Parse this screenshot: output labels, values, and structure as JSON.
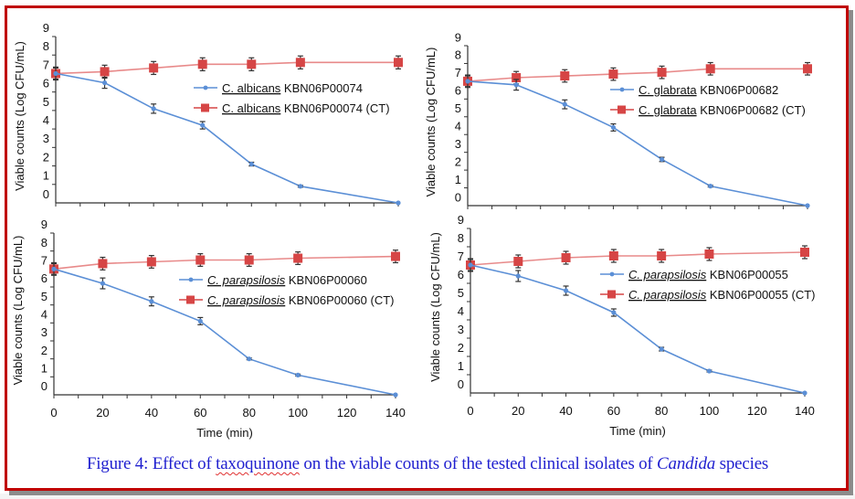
{
  "caption": {
    "prefix": "Figure 4: Effect of ",
    "compound": "taxoquinone",
    "middle": " on the viable counts of the tested clinical isolates of ",
    "genus": "Candida",
    "suffix": " species"
  },
  "colors": {
    "frame": "#c00000",
    "caption": "#1f1fcf",
    "treated_series": "#5b8fd6",
    "control_series": "#d64545",
    "control_line": "#e88a8a",
    "error_bar": "#333333"
  },
  "chart_data": [
    {
      "type": "line",
      "panel": "top-left",
      "title": "",
      "xlabel": "",
      "ylabel": "Viable counts (Log CFU/mL)",
      "x": [
        0,
        20,
        40,
        60,
        80,
        100,
        140
      ],
      "xlim": [
        0,
        140
      ],
      "ylim": [
        0,
        9
      ],
      "yticks": [
        0,
        1,
        2,
        3,
        4,
        5,
        6,
        7,
        8,
        9
      ],
      "xticks": [],
      "grid": false,
      "legend_position": "center-right",
      "series": [
        {
          "name": "C. albicans KBN06P00074",
          "name_species": "C. albicans",
          "name_strain": "KBN06P00074",
          "italic": false,
          "marker": "dot",
          "values": [
            7.0,
            6.5,
            5.1,
            4.2,
            2.1,
            0.9,
            0.0
          ],
          "errors": [
            0.3,
            0.3,
            0.25,
            0.2,
            0.1,
            0.05,
            0.0
          ]
        },
        {
          "name": "C. albicans KBN06P00074 (CT)",
          "name_species": "C. albicans",
          "name_strain": "KBN06P00074 (CT)",
          "italic": false,
          "marker": "square",
          "values": [
            7.0,
            7.1,
            7.3,
            7.5,
            7.5,
            7.6,
            7.6
          ],
          "errors": [
            0.35,
            0.35,
            0.35,
            0.35,
            0.35,
            0.35,
            0.35
          ]
        }
      ]
    },
    {
      "type": "line",
      "panel": "top-right",
      "title": "",
      "xlabel": "",
      "ylabel": "Viable counts (Log CFU/mL)",
      "x": [
        0,
        20,
        40,
        60,
        80,
        100,
        140
      ],
      "xlim": [
        0,
        140
      ],
      "ylim": [
        0,
        9
      ],
      "yticks": [
        0,
        1,
        2,
        3,
        4,
        5,
        6,
        7,
        8,
        9
      ],
      "xticks": [],
      "grid": false,
      "legend_position": "center-right",
      "series": [
        {
          "name": "C. glabrata KBN06P00682",
          "name_species": "C. glabrata",
          "name_strain": "KBN06P00682",
          "italic": false,
          "marker": "dot",
          "values": [
            7.0,
            6.8,
            5.7,
            4.4,
            2.6,
            1.1,
            0.0
          ],
          "errors": [
            0.3,
            0.3,
            0.25,
            0.2,
            0.12,
            0.05,
            0.0
          ]
        },
        {
          "name": "C. glabrata KBN06P00682 (CT)",
          "name_species": "C. glabrata",
          "name_strain": "KBN06P00682 (CT)",
          "italic": false,
          "marker": "square",
          "values": [
            7.0,
            7.2,
            7.3,
            7.4,
            7.5,
            7.7,
            7.7
          ],
          "errors": [
            0.35,
            0.35,
            0.35,
            0.35,
            0.35,
            0.35,
            0.35
          ]
        }
      ]
    },
    {
      "type": "line",
      "panel": "bottom-left",
      "title": "",
      "xlabel": "Time (min)",
      "ylabel": "Viable counts (Log CFU/mL)",
      "x": [
        0,
        20,
        40,
        60,
        80,
        100,
        140
      ],
      "xlim": [
        0,
        140
      ],
      "ylim": [
        0,
        9
      ],
      "yticks": [
        0,
        1,
        2,
        3,
        4,
        5,
        6,
        7,
        8,
        9
      ],
      "xticks": [
        0,
        20,
        40,
        60,
        80,
        100,
        120,
        140
      ],
      "grid": false,
      "legend_position": "center-right",
      "series": [
        {
          "name": "C. parapsilosis KBN06P00060",
          "name_species": "C. parapsilosis",
          "name_strain": "KBN06P00060",
          "italic": true,
          "marker": "dot",
          "values": [
            7.0,
            6.2,
            5.2,
            4.1,
            2.0,
            1.1,
            0.0
          ],
          "errors": [
            0.3,
            0.3,
            0.25,
            0.2,
            0.05,
            0.05,
            0.0
          ]
        },
        {
          "name": "C. parapsilosis KBN06P00060 (CT)",
          "name_species": "C. parapsilosis",
          "name_strain": "KBN06P00060 (CT)",
          "italic": true,
          "marker": "square",
          "values": [
            7.0,
            7.3,
            7.4,
            7.5,
            7.5,
            7.6,
            7.7
          ],
          "errors": [
            0.35,
            0.35,
            0.35,
            0.35,
            0.35,
            0.35,
            0.35
          ]
        }
      ]
    },
    {
      "type": "line",
      "panel": "bottom-right",
      "title": "",
      "xlabel": "Time (min)",
      "ylabel": "Viable counts (Log CFU/mL)",
      "x": [
        0,
        20,
        40,
        60,
        80,
        100,
        140
      ],
      "xlim": [
        0,
        140
      ],
      "ylim": [
        0,
        9
      ],
      "yticks": [
        0,
        1,
        2,
        3,
        4,
        5,
        6,
        7,
        8,
        9
      ],
      "xticks": [
        0,
        20,
        40,
        60,
        80,
        100,
        120,
        140
      ],
      "grid": false,
      "legend_position": "center-right",
      "series": [
        {
          "name": "C. parapsilosis KBN06P00055",
          "name_species": "C. parapsilosis",
          "name_strain": "KBN06P00055",
          "italic": true,
          "marker": "dot",
          "values": [
            7.0,
            6.4,
            5.6,
            4.4,
            2.4,
            1.2,
            0.0
          ],
          "errors": [
            0.3,
            0.3,
            0.25,
            0.2,
            0.1,
            0.05,
            0.0
          ]
        },
        {
          "name": "C. parapsilosis KBN06P00055 (CT)",
          "name_species": "C. parapsilosis",
          "name_strain": "KBN06P00055 (CT)",
          "italic": true,
          "marker": "square",
          "values": [
            7.0,
            7.2,
            7.4,
            7.5,
            7.5,
            7.6,
            7.7
          ],
          "errors": [
            0.35,
            0.35,
            0.35,
            0.35,
            0.35,
            0.35,
            0.35
          ]
        }
      ]
    }
  ]
}
